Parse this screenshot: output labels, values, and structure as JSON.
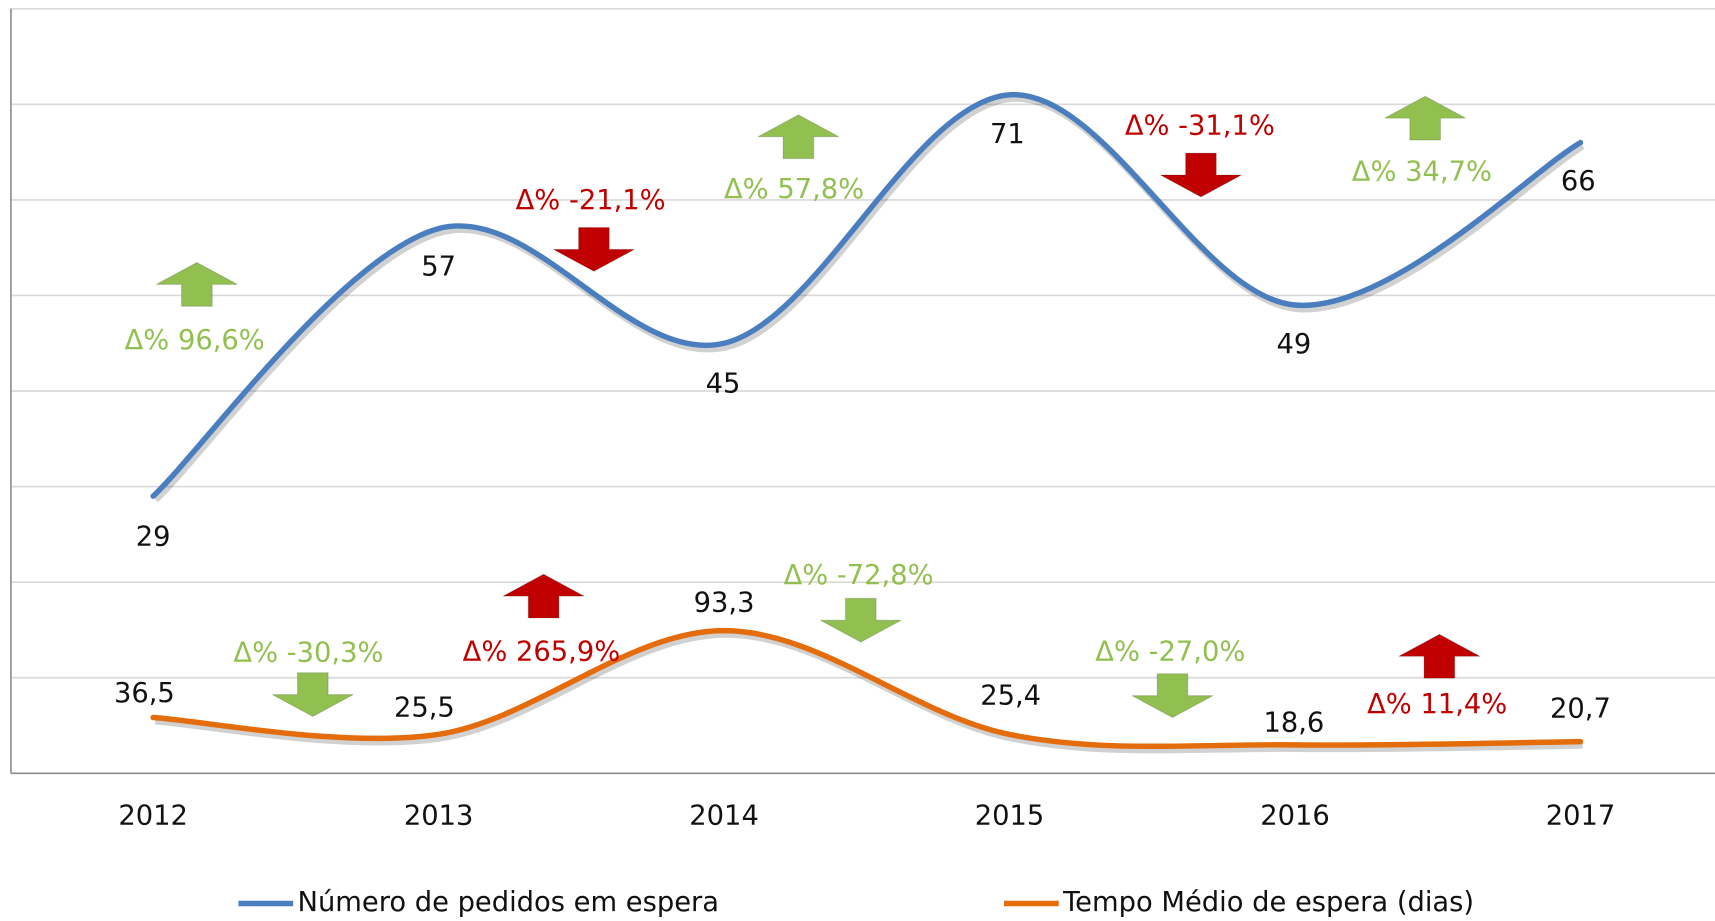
{
  "chart_data": {
    "type": "line",
    "categories": [
      "2012",
      "2013",
      "2014",
      "2015",
      "2016",
      "2017"
    ],
    "ylim": [
      0,
      80
    ],
    "yticks": [
      0,
      10,
      20,
      30,
      40,
      50,
      60,
      70,
      80
    ],
    "y2lim": [
      0,
      500
    ],
    "grid": true,
    "legend": "bottom",
    "series": [
      {
        "name": "Número de pedidos em espera",
        "color": "#4a7ebf",
        "values": [
          29,
          57,
          45,
          71,
          49,
          66
        ]
      },
      {
        "name": "Tempo Médio de espera (dias)",
        "color": "#e46c0a",
        "axis": "y2",
        "values": [
          36.5,
          25.5,
          93.3,
          25.4,
          18.6,
          20.7
        ],
        "value_labels": [
          "36,5",
          "25,5",
          "93,3",
          "25,4",
          "18,6",
          "20,7"
        ]
      }
    ],
    "annotations": [
      {
        "text": "Δ% 96,6%",
        "color": "#92c050",
        "direction": "up"
      },
      {
        "text": "Δ% -21,1%",
        "color": "#c00000",
        "direction": "down"
      },
      {
        "text": "Δ% 57,8%",
        "color": "#92c050",
        "direction": "up"
      },
      {
        "text": "Δ% -31,1%",
        "color": "#c00000",
        "direction": "down"
      },
      {
        "text": "Δ% 34,7%",
        "color": "#92c050",
        "direction": "up"
      },
      {
        "text": "Δ% -30,3%",
        "color": "#92c050",
        "direction": "down"
      },
      {
        "text": "Δ% 265,9%",
        "color": "#c00000",
        "direction": "up"
      },
      {
        "text": "Δ% -72,8%",
        "color": "#92c050",
        "direction": "down"
      },
      {
        "text": "Δ% -27,0%",
        "color": "#92c050",
        "direction": "down"
      },
      {
        "text": "Δ% 11,4%",
        "color": "#c00000",
        "direction": "up"
      }
    ]
  }
}
